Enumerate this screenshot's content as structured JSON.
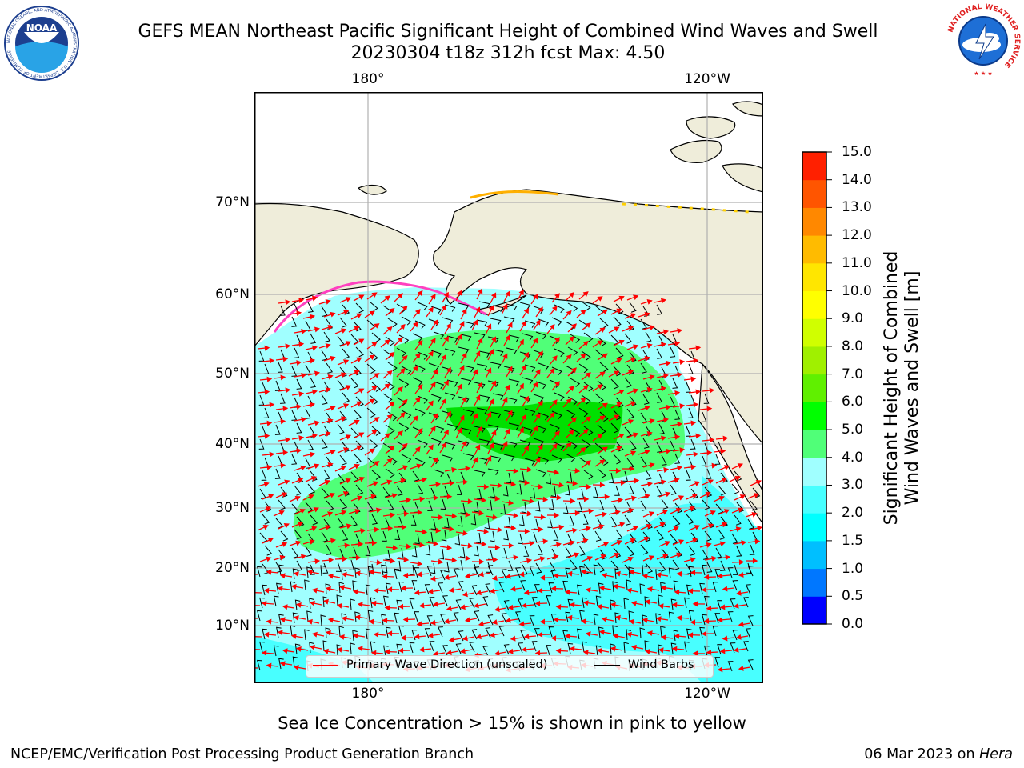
{
  "title_line1": "GEFS MEAN Northeast Pacific Significant Height of Combined Wind Waves and Swell",
  "title_line2": "20230304 t18z 312h fcst   Max: 4.50",
  "lon_labels": [
    "180°",
    "120°W"
  ],
  "lat_labels": [
    "70°N",
    "60°N",
    "50°N",
    "40°N",
    "30°N",
    "20°N",
    "10°N"
  ],
  "colorbar": {
    "title_line1": "Significant Height of Combined",
    "title_line2": "Wind Waves and Swell [m]",
    "ticks": [
      "0.0",
      "0.5",
      "1.0",
      "1.5",
      "2.0",
      "3.0",
      "4.0",
      "5.0",
      "6.0",
      "7.0",
      "8.0",
      "9.0",
      "10.0",
      "11.0",
      "12.0",
      "13.0",
      "14.0",
      "15.0"
    ],
    "colors": [
      "#0000ff",
      "#0077ff",
      "#00bfff",
      "#00ffff",
      "#48ffff",
      "#a0ffff",
      "#50ff78",
      "#00ff00",
      "#60f000",
      "#a0f000",
      "#d0ff00",
      "#ffff00",
      "#ffe600",
      "#ffbb00",
      "#ff8800",
      "#ff5500",
      "#ff2000",
      "#ff0000"
    ]
  },
  "legend": {
    "wave_label": "Primary Wave Direction (unscaled)",
    "wind_label": "Wind Barbs",
    "wave_color": "#ff0000",
    "wind_color": "#000000"
  },
  "footnote": "Sea Ice Concentration > 15% is shown in pink to yellow",
  "credit_left": "NCEP/EMC/Verification Post Processing Product Generation Branch",
  "credit_right_date": "06 Mar 2023 on ",
  "credit_right_host": "Hera",
  "logos": {
    "noaa_text": "NOAA",
    "noaa_ring": "NATIONAL OCEANIC AND ATMOSPHERIC ADMINISTRATION · U.S. DEPARTMENT OF COMMERCE",
    "nws_ring": "NATIONAL WEATHER SERVICE"
  },
  "map_colors": {
    "land": "#efedda",
    "ocean": "#ffffff",
    "grid": "#b0b0b0"
  }
}
